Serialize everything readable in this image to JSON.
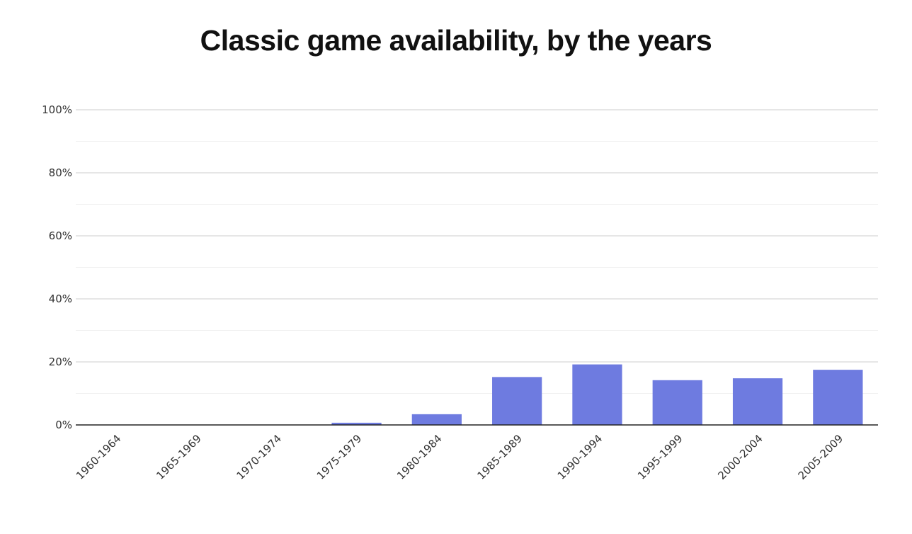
{
  "chart_data": {
    "type": "bar",
    "title": "Classic game availability, by the years",
    "xlabel": "",
    "ylabel": "",
    "categories": [
      "1960-1964",
      "1965-1969",
      "1970-1974",
      "1975-1979",
      "1980-1984",
      "1985-1989",
      "1990-1994",
      "1995-1999",
      "2000-2004",
      "2005-2009"
    ],
    "values": [
      0,
      0,
      0,
      0.7,
      3.4,
      15.2,
      19.2,
      14.2,
      14.8,
      17.5
    ],
    "ylim": [
      0,
      100
    ],
    "yticks": [
      "0%",
      "20%",
      "40%",
      "60%",
      "80%",
      "100%"
    ],
    "grid": true,
    "legend": "none",
    "bar_color": "#6e7be0"
  }
}
